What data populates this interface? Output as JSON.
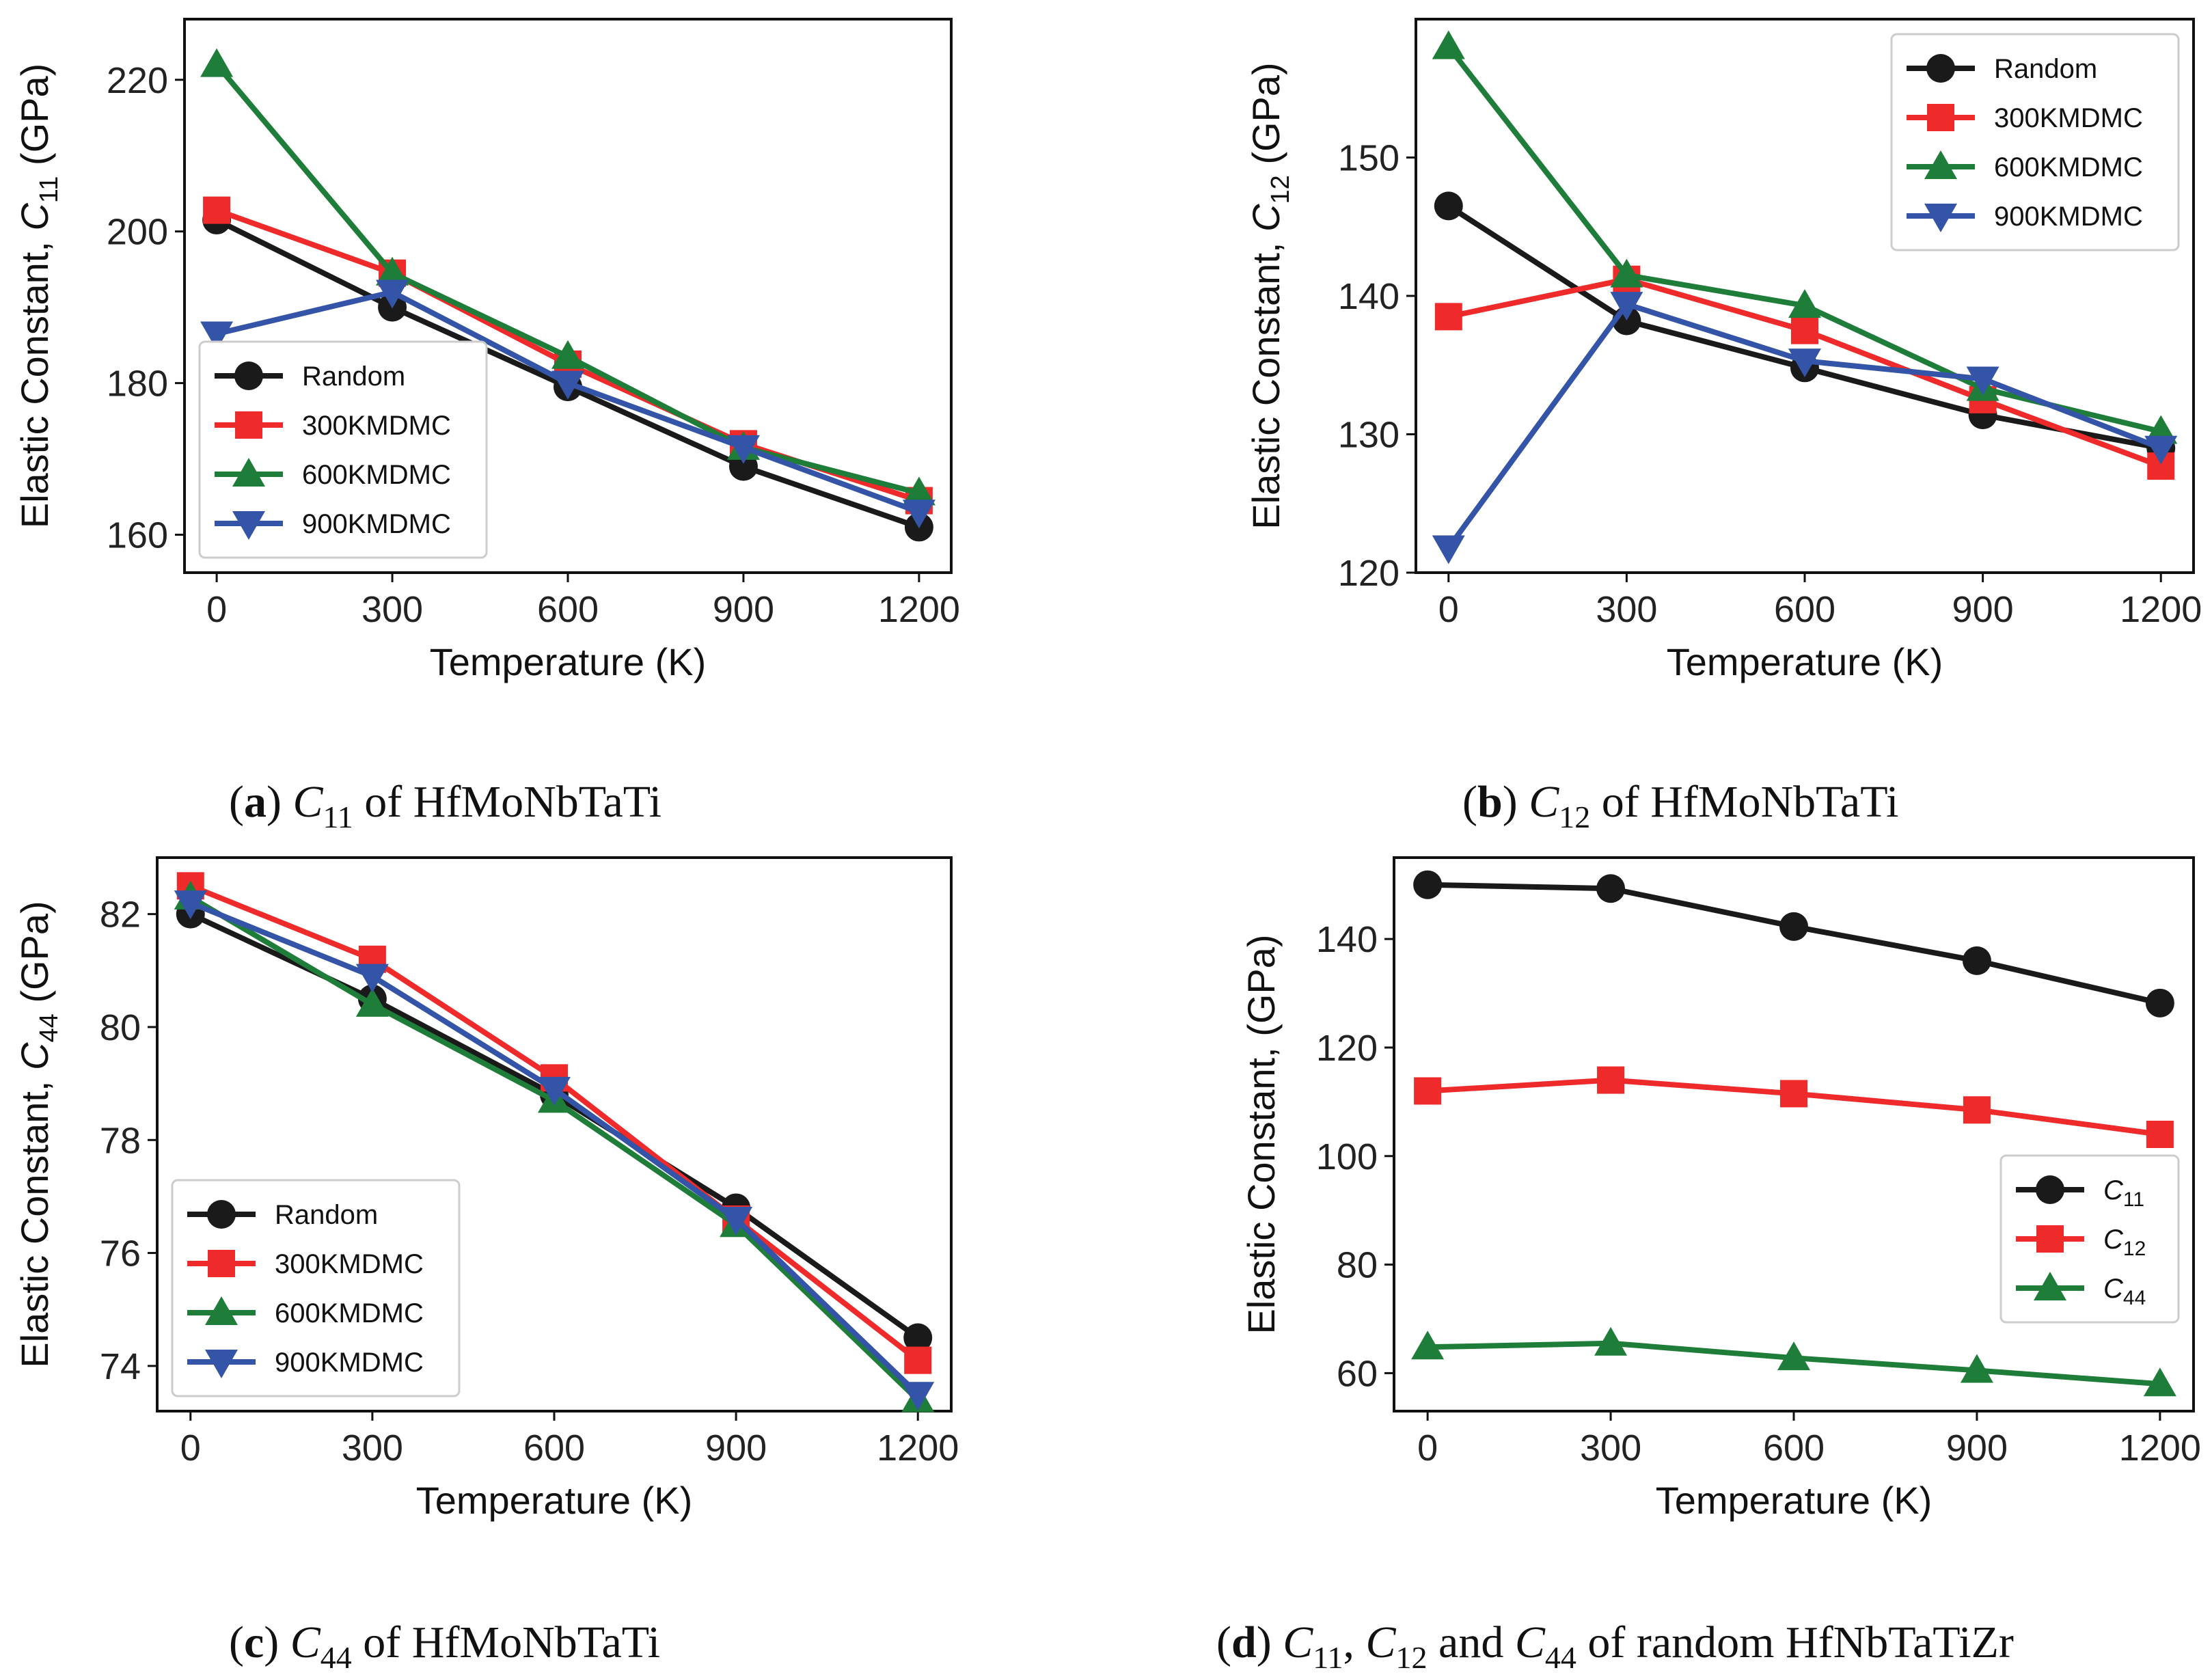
{
  "chart_data": [
    {
      "id": "a",
      "type": "line",
      "caption": {
        "tag": "a",
        "text": "C",
        "sub": "11",
        "rest": " of HfMoNbTaTi"
      },
      "xlabel": "Temperature (K)",
      "ylabel": {
        "text": "Elastic Constant, ",
        "sym": "C",
        "sub": "11",
        "unit": " (GPa)"
      },
      "x": [
        0,
        300,
        600,
        900,
        1200
      ],
      "xticks": [
        "0",
        "300",
        "600",
        "900",
        "1200"
      ],
      "xlim": [
        -55,
        1255
      ],
      "ylim": [
        155,
        228
      ],
      "yticks": [
        160,
        180,
        200,
        220
      ],
      "legend_position": "lower-left",
      "series": [
        {
          "name": "Random",
          "label": "Random",
          "color": "#1a1a1a",
          "marker": "circle",
          "values": [
            201.5,
            190.0,
            179.5,
            169.0,
            161.0
          ]
        },
        {
          "name": "300KMDMC",
          "label": "300KMDMC",
          "color": "#ee2a2a",
          "marker": "square",
          "values": [
            202.8,
            194.5,
            182.5,
            172.0,
            164.5
          ]
        },
        {
          "name": "600KMDMC",
          "label": "600KMDMC",
          "color": "#1f7d3a",
          "marker": "triangle-up",
          "values": [
            222.0,
            194.5,
            183.5,
            171.5,
            165.5
          ]
        },
        {
          "name": "900KMDMC",
          "label": "900KMDMC",
          "color": "#3454a8",
          "marker": "triangle-down",
          "values": [
            186.5,
            192.0,
            180.0,
            171.5,
            163.0
          ]
        }
      ]
    },
    {
      "id": "b",
      "type": "line",
      "caption": {
        "tag": "b",
        "text": "C",
        "sub": "12",
        "rest": " of HfMoNbTaTi"
      },
      "xlabel": "Temperature (K)",
      "ylabel": {
        "text": "Elastic Constant, ",
        "sym": "C",
        "sub": "12",
        "unit": " (GPa)"
      },
      "x": [
        0,
        300,
        600,
        900,
        1200
      ],
      "xticks": [
        "0",
        "300",
        "600",
        "900",
        "1200"
      ],
      "xlim": [
        -55,
        1255
      ],
      "ylim": [
        120,
        160
      ],
      "yticks": [
        120,
        130,
        140,
        150
      ],
      "legend_position": "top-right",
      "series": [
        {
          "name": "Random",
          "label": "Random",
          "color": "#1a1a1a",
          "marker": "circle",
          "values": [
            146.5,
            138.2,
            134.8,
            131.4,
            129.0
          ]
        },
        {
          "name": "300KMDMC",
          "label": "300KMDMC",
          "color": "#ee2a2a",
          "marker": "square",
          "values": [
            138.5,
            141.2,
            137.5,
            132.5,
            127.7
          ]
        },
        {
          "name": "600KMDMC",
          "label": "600KMDMC",
          "color": "#1f7d3a",
          "marker": "triangle-up",
          "values": [
            158.0,
            141.5,
            139.3,
            133.3,
            130.2
          ]
        },
        {
          "name": "900KMDMC",
          "label": "900KMDMC",
          "color": "#3454a8",
          "marker": "triangle-down",
          "values": [
            121.8,
            139.4,
            135.3,
            134.0,
            129.0
          ]
        }
      ]
    },
    {
      "id": "c",
      "type": "line",
      "caption": {
        "tag": "c",
        "text": "C",
        "sub": "44",
        "rest": " of HfMoNbTaTi"
      },
      "xlabel": "Temperature (K)",
      "ylabel": {
        "text": "Elastic Constant, ",
        "sym": "C",
        "sub": "44",
        "unit": " (GPa)"
      },
      "x": [
        0,
        300,
        600,
        900,
        1200
      ],
      "xticks": [
        "0",
        "300",
        "600",
        "900",
        "1200"
      ],
      "xlim": [
        -55,
        1255
      ],
      "ylim": [
        73.2,
        83.0
      ],
      "yticks": [
        74,
        76,
        78,
        80,
        82
      ],
      "legend_position": "lower-left",
      "series": [
        {
          "name": "Random",
          "label": "Random",
          "color": "#1a1a1a",
          "marker": "circle",
          "values": [
            82.0,
            80.5,
            78.8,
            76.8,
            74.5
          ]
        },
        {
          "name": "300KMDMC",
          "label": "300KMDMC",
          "color": "#ee2a2a",
          "marker": "square",
          "values": [
            82.5,
            81.2,
            79.1,
            76.6,
            74.1
          ]
        },
        {
          "name": "600KMDMC",
          "label": "600KMDMC",
          "color": "#1f7d3a",
          "marker": "triangle-up",
          "values": [
            82.3,
            80.4,
            78.7,
            76.5,
            73.4
          ]
        },
        {
          "name": "900KMDMC",
          "label": "900KMDMC",
          "color": "#3454a8",
          "marker": "triangle-down",
          "values": [
            82.2,
            80.9,
            78.9,
            76.6,
            73.5
          ]
        }
      ]
    },
    {
      "id": "d",
      "type": "line",
      "caption": {
        "tag": "d",
        "text": "C",
        "sub": "11",
        "rest": ", C12 and C44 of random HfNbTaTiZr"
      },
      "caption_parts": [
        {
          "t": "C",
          "i": true
        },
        {
          "t": "11",
          "sub": true
        },
        {
          "t": ", "
        },
        {
          "t": "C",
          "i": true
        },
        {
          "t": "12",
          "sub": true
        },
        {
          "t": " and "
        },
        {
          "t": "C",
          "i": true
        },
        {
          "t": "44",
          "sub": true
        },
        {
          "t": " of random HfNbTaTiZr"
        }
      ],
      "xlabel": "Temperature (K)",
      "ylabel": {
        "text": "Elastic Constant, (GPa)",
        "sym": "",
        "sub": "",
        "unit": ""
      },
      "x": [
        0,
        300,
        600,
        900,
        1200
      ],
      "xticks": [
        "0",
        "300",
        "600",
        "900",
        "1200"
      ],
      "xlim": [
        -55,
        1255
      ],
      "ylim": [
        53,
        155
      ],
      "yticks": [
        60,
        80,
        100,
        120,
        140
      ],
      "legend_position": "lower-right",
      "series": [
        {
          "name": "C11",
          "label": "C",
          "label_sub": "11",
          "color": "#1a1a1a",
          "marker": "circle",
          "values": [
            150.0,
            149.3,
            142.3,
            136.0,
            128.2
          ]
        },
        {
          "name": "C12",
          "label": "C",
          "label_sub": "12",
          "color": "#ee2a2a",
          "marker": "square",
          "values": [
            112.0,
            114.0,
            111.5,
            108.5,
            104.0
          ]
        },
        {
          "name": "C44",
          "label": "C",
          "label_sub": "44",
          "color": "#1f7d3a",
          "marker": "triangle-up",
          "values": [
            64.8,
            65.5,
            62.8,
            60.5,
            58.0
          ]
        }
      ]
    }
  ]
}
